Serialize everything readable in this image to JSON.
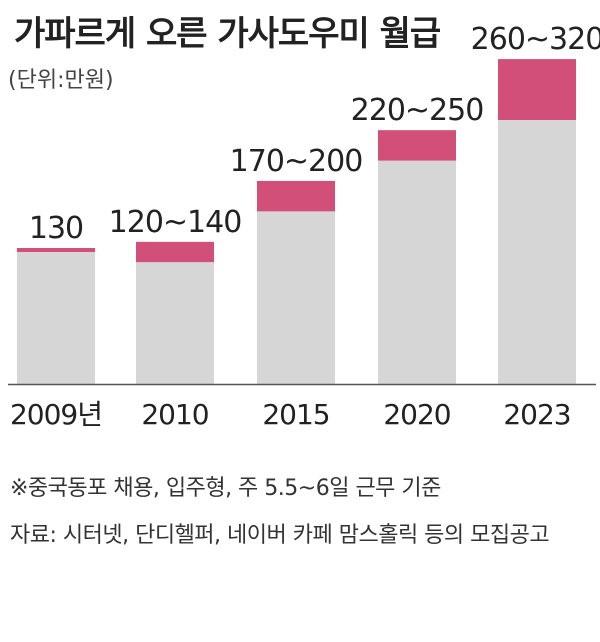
{
  "title": "가파르게 오른 가사도우미 월급",
  "unit_label": "(단위:만원)",
  "chart_data": {
    "type": "bar",
    "stacked": true,
    "categories": [
      "2009년",
      "2010",
      "2015",
      "2020",
      "2023"
    ],
    "data_labels": [
      "130",
      "120~140",
      "170~200",
      "220~250",
      "260~320"
    ],
    "series": [
      {
        "values": [
          130,
          120,
          170,
          220,
          260
        ],
        "color": "#d6d6d6"
      },
      {
        "values": [
          0,
          20,
          30,
          30,
          60
        ],
        "color": "#d24f79"
      }
    ],
    "ylim": [
      0,
      330
    ],
    "grid": false,
    "legend": "none"
  },
  "footnotes": [
    "※중국동포 채용, 입주형, 주 5.5~6일 근무 기준",
    "자료: 시터넷, 단디헬퍼, 네이버 카페 맘스홀릭 등의 모집공고"
  ]
}
